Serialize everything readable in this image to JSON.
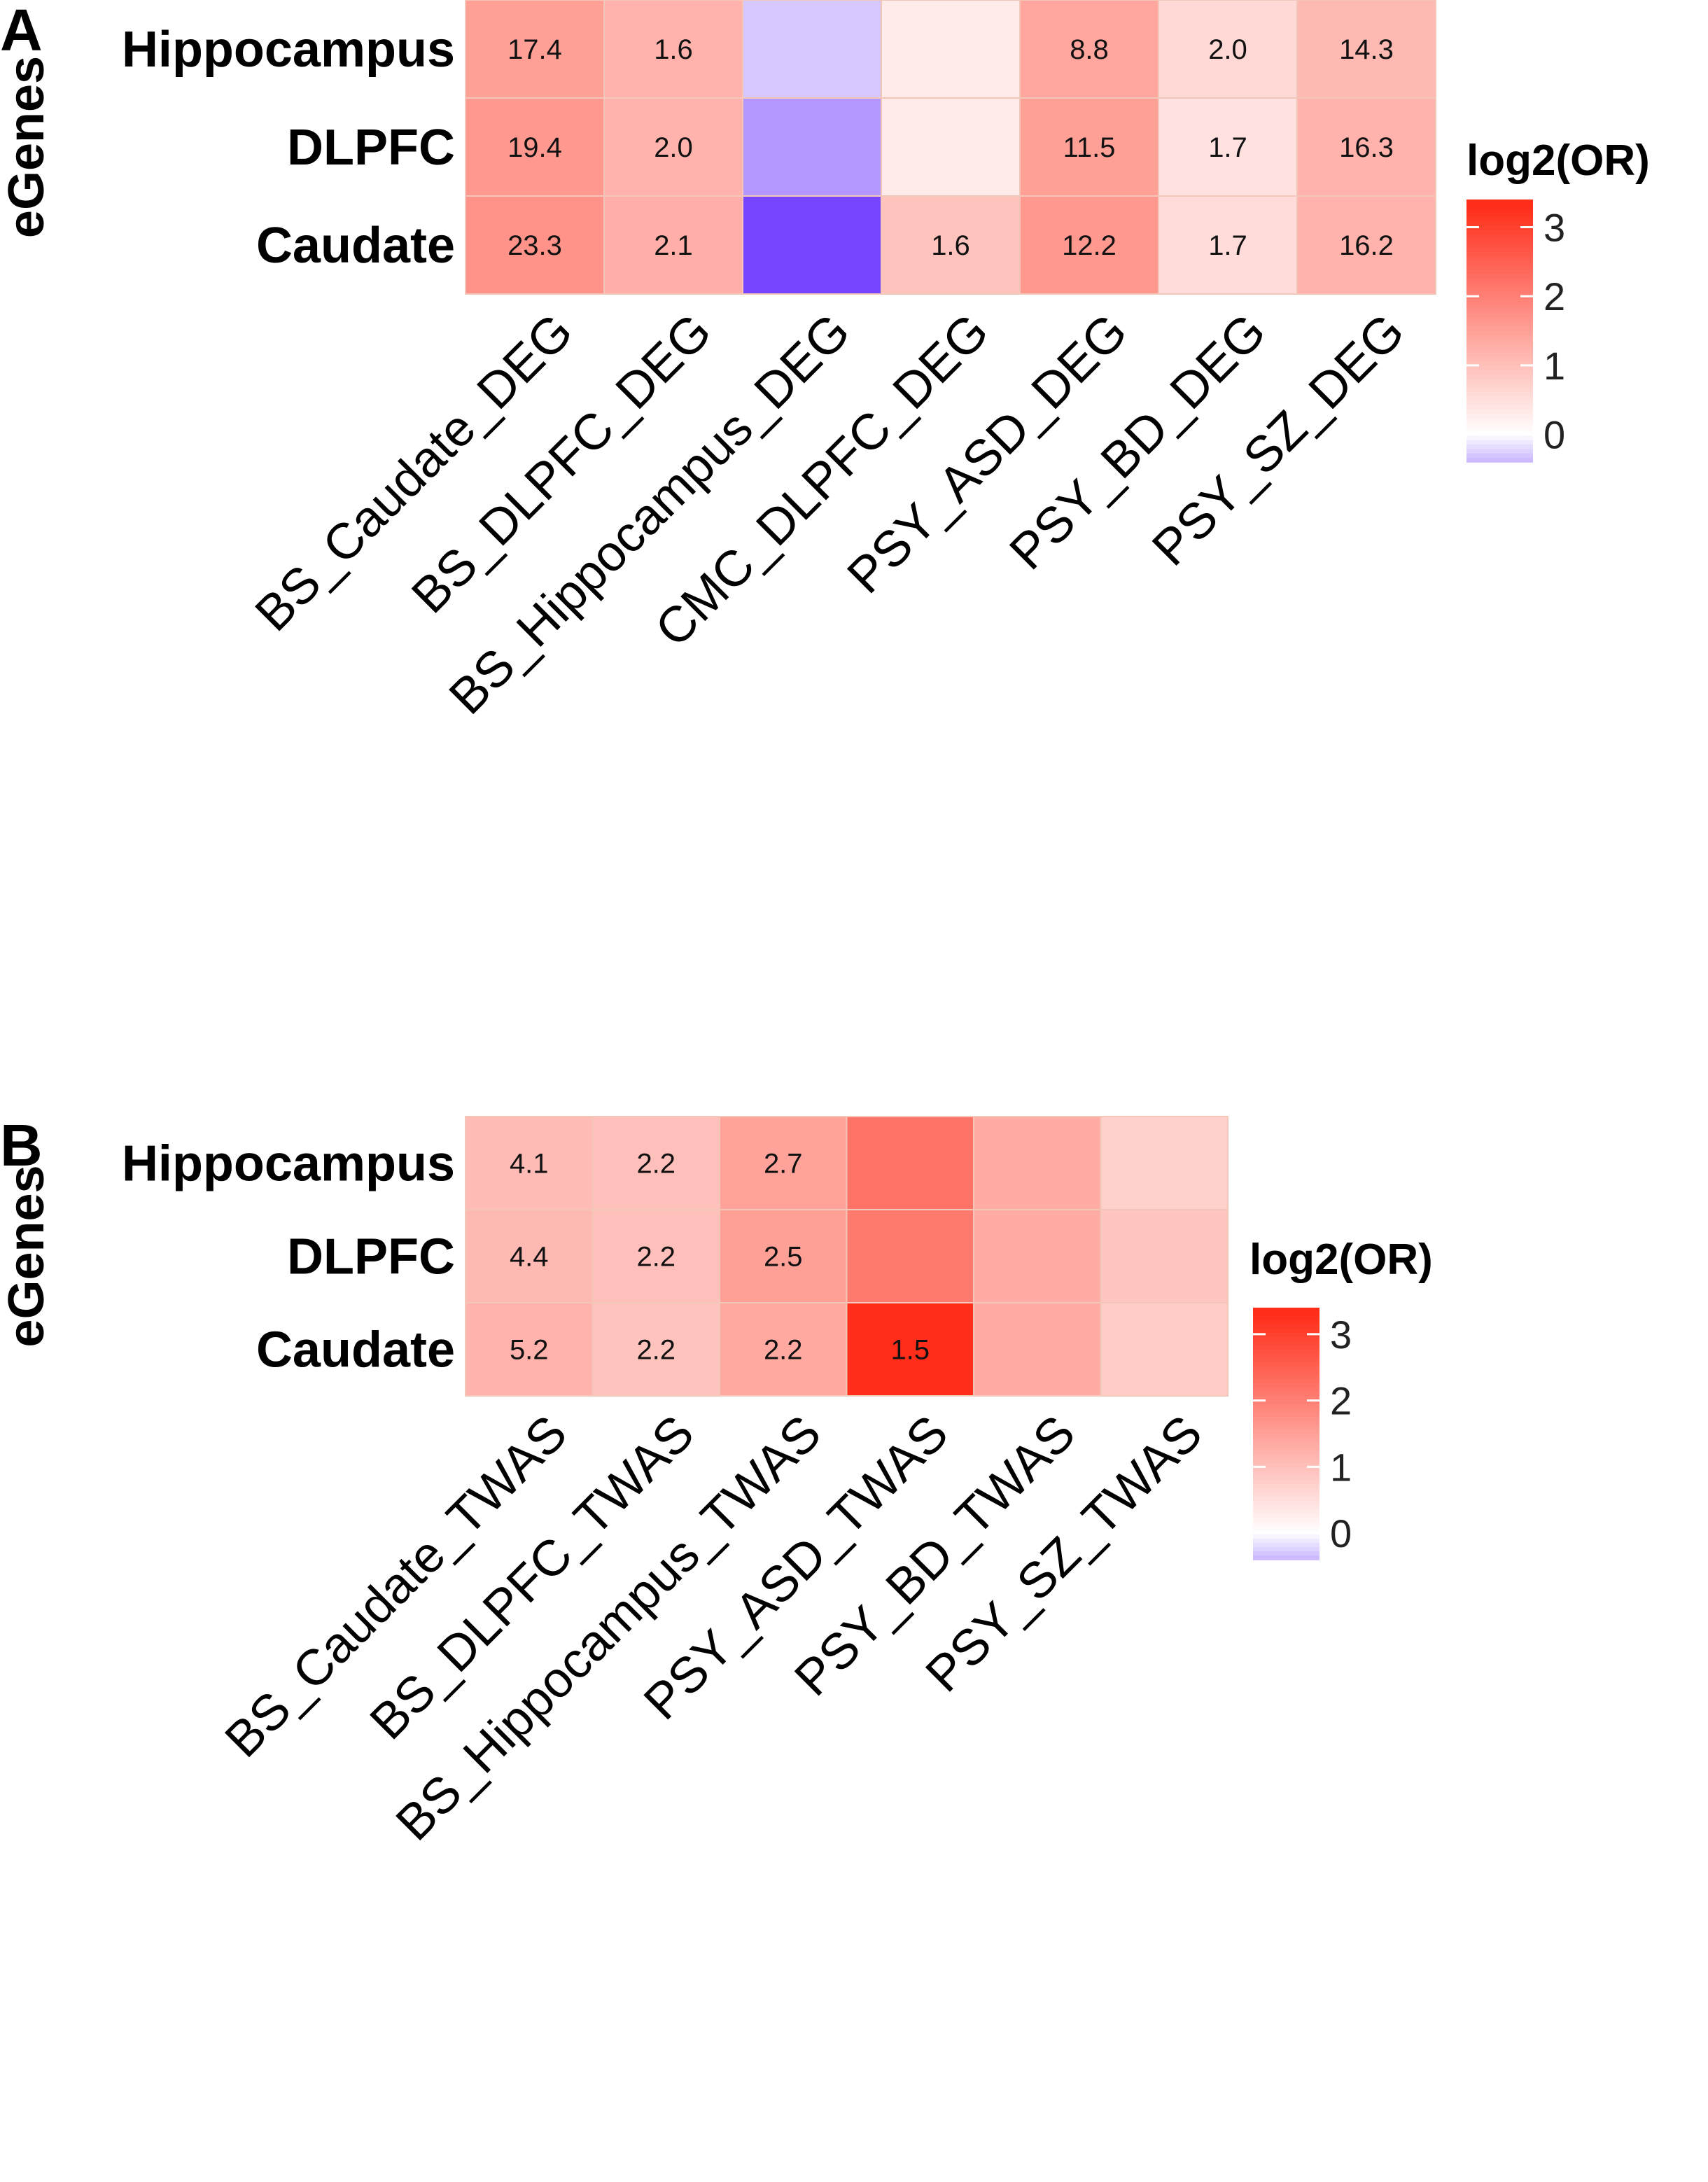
{
  "colors": {
    "low": "#7744ff",
    "mid": "#ffffff",
    "high": "#ff2d1a",
    "grid": "#f2c6b8"
  },
  "chart_data": [
    {
      "panel": "A",
      "type": "heatmap",
      "ylabel": "eGenes",
      "legend_title": "log2(OR)",
      "legend_ticks": [
        "3",
        "2",
        "1",
        "0"
      ],
      "legend_range": [
        -0.4,
        3.4
      ],
      "rows": [
        "Hippocampus",
        "DLPFC",
        "Caudate"
      ],
      "columns": [
        "BS_Caudate_DEG",
        "BS_DLPFC_DEG",
        "BS_Hippocampus_DEG",
        "CMC_DLPFC_DEG",
        "PSY_ASD_DEG",
        "PSY_BD_DEG",
        "PSY_SZ_DEG"
      ],
      "values": [
        [
          1.5,
          1.2,
          -0.3,
          0.3,
          1.4,
          0.6,
          1.1
        ],
        [
          1.6,
          1.2,
          -0.55,
          0.3,
          1.5,
          0.45,
          1.2
        ],
        [
          1.7,
          1.25,
          -1.0,
          0.95,
          1.6,
          0.55,
          1.2
        ]
      ],
      "labels": [
        [
          "17.4",
          "1.6",
          "",
          "",
          "8.8",
          "2.0",
          "14.3"
        ],
        [
          "19.4",
          "2.0",
          "",
          "",
          "11.5",
          "1.7",
          "16.3"
        ],
        [
          "23.3",
          "2.1",
          "",
          "1.6",
          "12.2",
          "1.7",
          "16.2"
        ]
      ]
    },
    {
      "panel": "B",
      "type": "heatmap",
      "ylabel": "eGenes",
      "legend_title": "log2(OR)",
      "legend_ticks": [
        "3",
        "2",
        "1",
        "0"
      ],
      "legend_range": [
        -0.4,
        3.4
      ],
      "rows": [
        "Hippocampus",
        "DLPFC",
        "Caudate"
      ],
      "columns": [
        "BS_Caudate_TWAS",
        "BS_DLPFC_TWAS",
        "BS_Hippocampus_TWAS",
        "PSY_ASD_TWAS",
        "PSY_BD_TWAS",
        "PSY_SZ_TWAS"
      ],
      "values": [
        [
          1.05,
          1.0,
          1.45,
          2.2,
          1.3,
          0.75
        ],
        [
          1.1,
          1.0,
          1.5,
          2.1,
          1.3,
          0.9
        ],
        [
          1.2,
          0.95,
          1.35,
          3.3,
          1.3,
          0.8
        ]
      ],
      "labels": [
        [
          "4.1",
          "2.2",
          "2.7",
          "",
          "",
          ""
        ],
        [
          "4.4",
          "2.2",
          "2.5",
          "",
          "",
          ""
        ],
        [
          "5.2",
          "2.2",
          "2.2",
          "1.5",
          "",
          ""
        ]
      ]
    }
  ]
}
